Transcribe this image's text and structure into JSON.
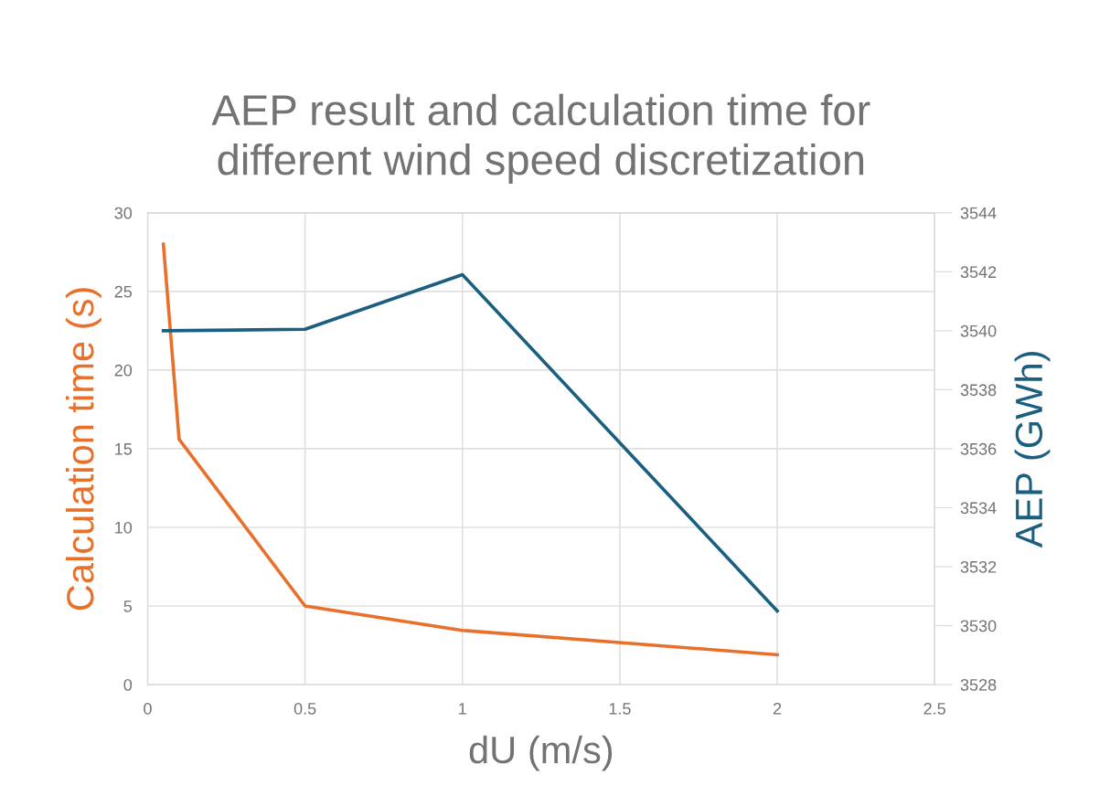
{
  "chart_data": {
    "type": "line",
    "title": "AEP result and calculation time for\ndifferent wind speed discretization",
    "xlabel": "dU (m/s)",
    "ylabel": "Calculation time (s)",
    "y2label": "AEP (GWh)",
    "x": [
      0.05,
      0.1,
      0.5,
      1,
      2
    ],
    "series": [
      {
        "color": "#e8702a",
        "values": [
          28,
          15.6,
          5.0,
          3.45,
          1.9
        ]
      },
      {
        "color": "#1a5f80",
        "axis": "y2",
        "values": [
          3540.0,
          null,
          3540.05,
          3541.9,
          3530.5
        ]
      }
    ],
    "xlim": [
      0,
      2.5
    ],
    "xticks": [
      0,
      0.5,
      1,
      1.5,
      2,
      2.5
    ],
    "ylim": [
      0,
      30
    ],
    "yticks": [
      0,
      5,
      10,
      15,
      20,
      25,
      30
    ],
    "y2lim": [
      3528,
      3544
    ],
    "y2ticks": [
      3528,
      3530,
      3532,
      3534,
      3536,
      3538,
      3540,
      3542,
      3544
    ],
    "grid": true,
    "marker": "none",
    "line_style": "solid"
  }
}
